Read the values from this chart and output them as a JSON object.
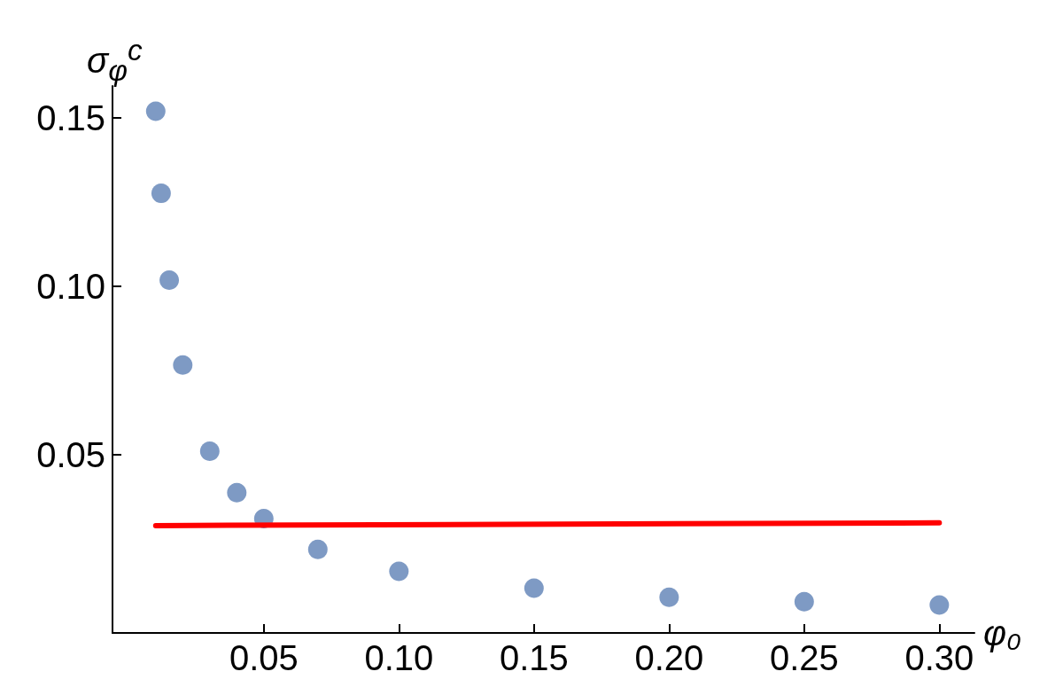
{
  "chart_data": {
    "type": "scatter",
    "xlabel": "φ₀",
    "ylabel": "σ$_{φ}$$^{c}$",
    "xlim": [
      -0.006,
      0.313
    ],
    "ylim": [
      -0.003,
      0.1595
    ],
    "xticks": [
      {
        "value": 0.05,
        "label": "0.05"
      },
      {
        "value": 0.1,
        "label": "0.10"
      },
      {
        "value": 0.15,
        "label": "0.15"
      },
      {
        "value": 0.2,
        "label": "0.20"
      },
      {
        "value": 0.25,
        "label": "0.25"
      },
      {
        "value": 0.3,
        "label": "0.30"
      }
    ],
    "yticks": [
      {
        "value": 0.05,
        "label": "0.05"
      },
      {
        "value": 0.1,
        "label": "0.10"
      },
      {
        "value": 0.15,
        "label": "0.15"
      }
    ],
    "grid": false,
    "series": [
      {
        "type": "scatter",
        "color": "#5e81b5",
        "marker": "circle",
        "x": [
          0.01,
          0.012,
          0.015,
          0.02,
          0.03,
          0.04,
          0.05,
          0.07,
          0.1,
          0.15,
          0.2,
          0.25,
          0.3
        ],
        "values": [
          0.152,
          0.1276,
          0.1018,
          0.0766,
          0.051,
          0.0387,
          0.031,
          0.0218,
          0.0153,
          0.0103,
          0.0076,
          0.0063,
          0.0053
        ]
      },
      {
        "type": "line",
        "color": "#ff0000",
        "marker": "none",
        "line_style": "solid",
        "x": [
          0.01,
          0.3
        ],
        "values": [
          0.0289,
          0.0297
        ]
      }
    ]
  }
}
